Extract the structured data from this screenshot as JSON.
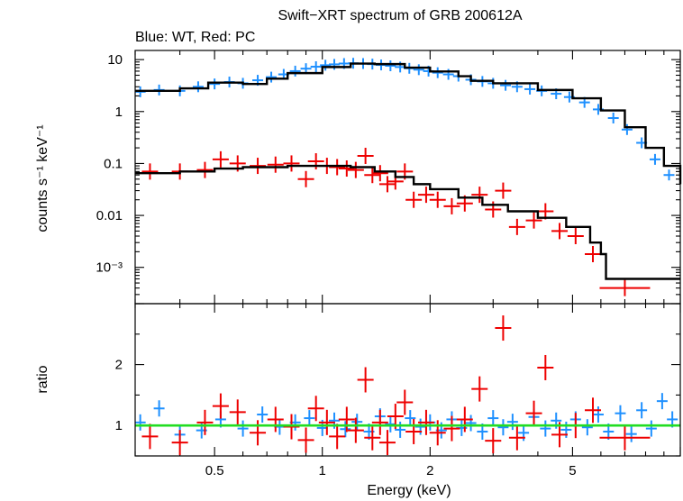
{
  "chart_data": {
    "type": "scatter",
    "title": "Swift−XRT spectrum of GRB 200612A",
    "subtitle": "Blue: WT, Red: PC",
    "xlabel": "Energy (keV)",
    "x_scale": "log",
    "xlim": [
      0.3,
      10
    ],
    "x_tick_labels": [
      "0.5",
      "1",
      "2",
      "5"
    ],
    "colors": {
      "wt": "#1e90ff",
      "pc": "#ee0000",
      "model": "#000000",
      "unity": "#22dd22"
    },
    "panels": {
      "spectrum": {
        "ylabel": "counts s⁻¹ keV⁻¹",
        "y_scale": "log",
        "ylim": [
          0.0002,
          15
        ],
        "y_tick_labels": [
          "10",
          "1",
          "0.1",
          "0.01",
          "10⁻³"
        ],
        "wt_points": [
          [
            0.31,
            2.4
          ],
          [
            0.35,
            2.6
          ],
          [
            0.4,
            2.5
          ],
          [
            0.45,
            3.0
          ],
          [
            0.5,
            3.4
          ],
          [
            0.55,
            3.7
          ],
          [
            0.6,
            3.5
          ],
          [
            0.66,
            4.0
          ],
          [
            0.72,
            4.6
          ],
          [
            0.78,
            5.2
          ],
          [
            0.84,
            6.0
          ],
          [
            0.9,
            6.7
          ],
          [
            0.96,
            7.3
          ],
          [
            1.02,
            7.8
          ],
          [
            1.08,
            8.1
          ],
          [
            1.15,
            8.4
          ],
          [
            1.22,
            8.5
          ],
          [
            1.3,
            8.4
          ],
          [
            1.38,
            8.2
          ],
          [
            1.46,
            7.9
          ],
          [
            1.55,
            7.6
          ],
          [
            1.65,
            7.2
          ],
          [
            1.75,
            6.8
          ],
          [
            1.86,
            6.4
          ],
          [
            1.98,
            6.0
          ],
          [
            2.1,
            5.6
          ],
          [
            2.25,
            5.2
          ],
          [
            2.4,
            4.8
          ],
          [
            2.6,
            4.1
          ],
          [
            2.8,
            3.8
          ],
          [
            3.0,
            3.5
          ],
          [
            3.25,
            3.2
          ],
          [
            3.5,
            3.0
          ],
          [
            3.8,
            2.7
          ],
          [
            4.1,
            2.5
          ],
          [
            4.5,
            2.2
          ],
          [
            4.9,
            1.9
          ],
          [
            5.4,
            1.5
          ],
          [
            5.9,
            1.1
          ],
          [
            6.5,
            0.75
          ],
          [
            7.1,
            0.45
          ],
          [
            7.8,
            0.25
          ],
          [
            8.5,
            0.12
          ],
          [
            9.3,
            0.06
          ]
        ],
        "pc_points": [
          [
            0.33,
            0.07
          ],
          [
            0.4,
            0.07
          ],
          [
            0.47,
            0.075
          ],
          [
            0.52,
            0.12
          ],
          [
            0.58,
            0.1
          ],
          [
            0.66,
            0.09
          ],
          [
            0.74,
            0.095
          ],
          [
            0.82,
            0.1
          ],
          [
            0.9,
            0.05
          ],
          [
            0.96,
            0.11
          ],
          [
            1.03,
            0.09
          ],
          [
            1.1,
            0.085
          ],
          [
            1.17,
            0.08
          ],
          [
            1.24,
            0.075
          ],
          [
            1.32,
            0.14
          ],
          [
            1.38,
            0.06
          ],
          [
            1.45,
            0.065
          ],
          [
            1.52,
            0.04
          ],
          [
            1.6,
            0.045
          ],
          [
            1.7,
            0.07
          ],
          [
            1.8,
            0.02
          ],
          [
            1.95,
            0.025
          ],
          [
            2.1,
            0.02
          ],
          [
            2.3,
            0.015
          ],
          [
            2.5,
            0.017
          ],
          [
            2.75,
            0.025
          ],
          [
            3.0,
            0.013
          ],
          [
            3.2,
            0.03
          ],
          [
            3.5,
            0.006
          ],
          [
            3.9,
            0.008
          ],
          [
            4.2,
            0.012
          ],
          [
            4.6,
            0.005
          ],
          [
            5.1,
            0.004
          ],
          [
            5.7,
            0.0018
          ],
          [
            7.0,
            0.0004
          ]
        ],
        "model": [
          [
            0.3,
            2.5
          ],
          [
            0.4,
            2.8
          ],
          [
            0.48,
            3.6
          ],
          [
            0.6,
            3.4
          ],
          [
            0.7,
            4.3
          ],
          [
            0.8,
            5.5
          ],
          [
            1.0,
            7.2
          ],
          [
            1.2,
            8.4
          ],
          [
            1.4,
            8.2
          ],
          [
            1.7,
            7.0
          ],
          [
            2.0,
            5.9
          ],
          [
            2.4,
            4.8
          ],
          [
            2.6,
            3.9
          ],
          [
            3.0,
            3.5
          ],
          [
            4.0,
            2.6
          ],
          [
            5.0,
            1.8
          ],
          [
            6.0,
            1.05
          ],
          [
            7.0,
            0.5
          ],
          [
            8.0,
            0.2
          ],
          [
            9.0,
            0.09
          ],
          [
            10.0,
            0.04
          ]
        ],
        "model_pc": [
          [
            0.3,
            0.065
          ],
          [
            0.4,
            0.07
          ],
          [
            0.5,
            0.08
          ],
          [
            0.6,
            0.085
          ],
          [
            0.8,
            0.09
          ],
          [
            1.0,
            0.09
          ],
          [
            1.2,
            0.085
          ],
          [
            1.4,
            0.07
          ],
          [
            1.6,
            0.055
          ],
          [
            1.8,
            0.04
          ],
          [
            2.0,
            0.032
          ],
          [
            2.4,
            0.022
          ],
          [
            2.8,
            0.016
          ],
          [
            3.3,
            0.012
          ],
          [
            4.0,
            0.009
          ],
          [
            4.8,
            0.006
          ],
          [
            5.6,
            0.003
          ],
          [
            6.0,
            0.0018
          ],
          [
            6.2,
            0.0006
          ],
          [
            9.0,
            0.0006
          ]
        ]
      },
      "ratio": {
        "ylabel": "ratio",
        "ylim": [
          0.5,
          3.0
        ],
        "y_tick_labels": [
          "1",
          "2"
        ],
        "unity": 1,
        "wt_points": [
          [
            0.31,
            1.05
          ],
          [
            0.35,
            1.28
          ],
          [
            0.4,
            0.85
          ],
          [
            0.46,
            0.92
          ],
          [
            0.52,
            1.1
          ],
          [
            0.6,
            0.95
          ],
          [
            0.68,
            1.18
          ],
          [
            0.76,
            0.98
          ],
          [
            0.84,
            1.05
          ],
          [
            0.92,
            1.12
          ],
          [
            1.0,
            0.96
          ],
          [
            1.08,
            1.08
          ],
          [
            1.16,
            0.94
          ],
          [
            1.25,
            1.06
          ],
          [
            1.35,
            0.9
          ],
          [
            1.45,
            1.15
          ],
          [
            1.55,
            1.02
          ],
          [
            1.65,
            0.93
          ],
          [
            1.76,
            1.12
          ],
          [
            1.88,
            0.98
          ],
          [
            2.0,
            1.05
          ],
          [
            2.15,
            0.92
          ],
          [
            2.3,
            1.1
          ],
          [
            2.45,
            0.96
          ],
          [
            2.6,
            1.04
          ],
          [
            2.8,
            0.9
          ],
          [
            3.0,
            1.12
          ],
          [
            3.2,
            0.97
          ],
          [
            3.4,
            1.06
          ],
          [
            3.65,
            0.88
          ],
          [
            3.9,
            1.14
          ],
          [
            4.2,
            0.95
          ],
          [
            4.5,
            1.08
          ],
          [
            4.8,
            0.93
          ],
          [
            5.1,
            1.1
          ],
          [
            5.5,
            0.97
          ],
          [
            5.9,
            1.18
          ],
          [
            6.3,
            0.9
          ],
          [
            6.8,
            1.2
          ],
          [
            7.3,
            0.86
          ],
          [
            7.8,
            1.25
          ],
          [
            8.3,
            0.95
          ],
          [
            8.9,
            1.4
          ],
          [
            9.5,
            1.1
          ]
        ],
        "pc_points": [
          [
            0.33,
            0.82
          ],
          [
            0.4,
            0.72
          ],
          [
            0.47,
            1.05
          ],
          [
            0.52,
            1.32
          ],
          [
            0.58,
            1.22
          ],
          [
            0.66,
            0.88
          ],
          [
            0.74,
            1.1
          ],
          [
            0.82,
            0.98
          ],
          [
            0.9,
            0.76
          ],
          [
            0.96,
            1.28
          ],
          [
            1.03,
            1.05
          ],
          [
            1.1,
            0.82
          ],
          [
            1.17,
            1.1
          ],
          [
            1.24,
            0.92
          ],
          [
            1.32,
            1.75
          ],
          [
            1.38,
            0.8
          ],
          [
            1.45,
            1.05
          ],
          [
            1.52,
            0.72
          ],
          [
            1.6,
            1.15
          ],
          [
            1.7,
            1.38
          ],
          [
            1.8,
            0.9
          ],
          [
            1.95,
            1.05
          ],
          [
            2.1,
            0.88
          ],
          [
            2.3,
            0.95
          ],
          [
            2.5,
            1.1
          ],
          [
            2.75,
            1.6
          ],
          [
            3.0,
            0.75
          ],
          [
            3.2,
            2.6
          ],
          [
            3.5,
            0.8
          ],
          [
            3.9,
            1.2
          ],
          [
            4.2,
            1.95
          ],
          [
            4.6,
            0.85
          ],
          [
            5.1,
            1.0
          ],
          [
            5.7,
            1.25
          ],
          [
            7.0,
            0.8
          ]
        ]
      }
    }
  }
}
